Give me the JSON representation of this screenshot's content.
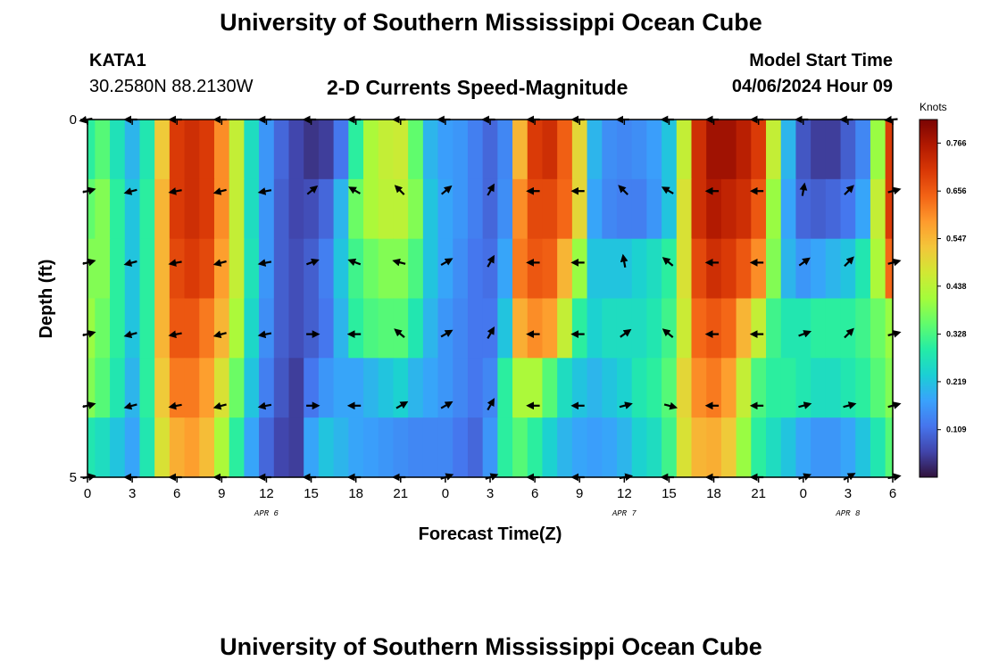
{
  "header": {
    "title": "University of Southern Mississippi Ocean Cube",
    "station": "KATA1",
    "coords": "30.2580N  88.2130W",
    "subtitle": "2-D Currents Speed-Magnitude",
    "model_label": "Model Start Time",
    "model_time": "04/06/2024 Hour 09"
  },
  "footer": {
    "title": "University of Southern Mississippi Ocean Cube"
  },
  "chart_data": {
    "type": "heatmap",
    "xlabel": "Forecast Time(Z)",
    "ylabel": "Depth (ft)",
    "x_range": [
      0,
      54
    ],
    "y_range": [
      0,
      5
    ],
    "x_ticks": [
      0,
      3,
      6,
      9,
      12,
      15,
      18,
      21,
      24,
      27,
      30,
      33,
      36,
      39,
      42,
      45,
      48,
      51,
      54
    ],
    "x_tick_labels": [
      "0",
      "3",
      "6",
      "9",
      "12",
      "15",
      "18",
      "21",
      "0",
      "3",
      "6",
      "9",
      "12",
      "15",
      "18",
      "21",
      "0",
      "3",
      "6"
    ],
    "y_tick_labels": [
      {
        "value": 0,
        "label": "0"
      },
      {
        "value": 5,
        "label": "5"
      }
    ],
    "date_labels": [
      {
        "x": 12,
        "label": "APR 6"
      },
      {
        "x": 36,
        "label": "APR 7"
      },
      {
        "x": 51,
        "label": "APR 8"
      }
    ],
    "colorbar": {
      "title": "Knots",
      "min": 0.0,
      "max": 0.82,
      "ticks": [
        0.109,
        0.219,
        0.328,
        0.438,
        0.547,
        0.656,
        0.766
      ],
      "tick_labels": [
        "0.109",
        "0.219",
        "0.328",
        "0.438",
        "0.547",
        "0.656",
        "0.766"
      ],
      "colors": [
        "#30123b",
        "#4145ab",
        "#4675ed",
        "#39a2fc",
        "#1bcfd4",
        "#24eca6",
        "#61fc6c",
        "#a4fc3b",
        "#d1e834",
        "#f3c63a",
        "#fe9b2d",
        "#f36315",
        "#d93806",
        "#b11901",
        "#7a0403"
      ]
    },
    "columns_x": [
      0,
      1,
      2,
      3,
      4,
      5,
      6,
      7,
      8,
      9,
      10,
      11,
      12,
      13,
      14,
      15,
      16,
      17,
      18,
      19,
      20,
      21,
      22,
      23,
      24,
      25,
      26,
      27,
      28,
      29,
      30,
      31,
      32,
      33,
      34,
      35,
      36,
      37,
      38,
      39,
      40,
      41,
      42,
      43,
      44,
      45,
      46,
      47,
      48,
      49,
      50,
      51,
      52,
      53,
      54
    ],
    "speed_rows": [
      [
        0.3,
        0.34,
        0.27,
        0.2,
        0.28,
        0.52,
        0.7,
        0.72,
        0.7,
        0.6,
        0.45,
        0.26,
        0.16,
        0.1,
        0.06,
        0.04,
        0.05,
        0.12,
        0.3,
        0.42,
        0.45,
        0.46,
        0.35,
        0.2,
        0.17,
        0.16,
        0.13,
        0.1,
        0.14,
        0.55,
        0.7,
        0.72,
        0.65,
        0.5,
        0.2,
        0.15,
        0.14,
        0.15,
        0.17,
        0.22,
        0.45,
        0.72,
        0.78,
        0.78,
        0.75,
        0.7,
        0.45,
        0.2,
        0.08,
        0.05,
        0.05,
        0.09,
        0.14,
        0.4,
        0.7
      ],
      [
        0.35,
        0.38,
        0.3,
        0.22,
        0.3,
        0.55,
        0.7,
        0.72,
        0.7,
        0.6,
        0.45,
        0.26,
        0.16,
        0.09,
        0.06,
        0.07,
        0.1,
        0.2,
        0.36,
        0.42,
        0.44,
        0.44,
        0.38,
        0.22,
        0.18,
        0.16,
        0.13,
        0.1,
        0.15,
        0.6,
        0.68,
        0.68,
        0.64,
        0.5,
        0.18,
        0.14,
        0.13,
        0.13,
        0.16,
        0.22,
        0.48,
        0.72,
        0.76,
        0.74,
        0.72,
        0.66,
        0.4,
        0.18,
        0.1,
        0.09,
        0.1,
        0.12,
        0.18,
        0.45,
        0.7
      ],
      [
        0.38,
        0.38,
        0.3,
        0.22,
        0.3,
        0.55,
        0.68,
        0.7,
        0.68,
        0.58,
        0.45,
        0.27,
        0.16,
        0.09,
        0.07,
        0.09,
        0.13,
        0.22,
        0.32,
        0.36,
        0.38,
        0.38,
        0.33,
        0.22,
        0.18,
        0.15,
        0.12,
        0.11,
        0.18,
        0.62,
        0.66,
        0.65,
        0.55,
        0.4,
        0.22,
        0.22,
        0.22,
        0.24,
        0.26,
        0.3,
        0.48,
        0.68,
        0.72,
        0.7,
        0.66,
        0.6,
        0.38,
        0.2,
        0.16,
        0.18,
        0.2,
        0.22,
        0.28,
        0.42,
        0.64
      ],
      [
        0.4,
        0.36,
        0.3,
        0.22,
        0.3,
        0.55,
        0.66,
        0.66,
        0.62,
        0.55,
        0.42,
        0.25,
        0.15,
        0.09,
        0.07,
        0.09,
        0.12,
        0.2,
        0.3,
        0.33,
        0.34,
        0.34,
        0.28,
        0.2,
        0.16,
        0.14,
        0.12,
        0.12,
        0.22,
        0.56,
        0.6,
        0.58,
        0.45,
        0.3,
        0.24,
        0.26,
        0.26,
        0.26,
        0.28,
        0.32,
        0.46,
        0.64,
        0.66,
        0.64,
        0.55,
        0.45,
        0.32,
        0.28,
        0.28,
        0.3,
        0.3,
        0.3,
        0.32,
        0.36,
        0.4
      ],
      [
        0.38,
        0.34,
        0.28,
        0.2,
        0.3,
        0.52,
        0.62,
        0.62,
        0.58,
        0.48,
        0.36,
        0.22,
        0.13,
        0.08,
        0.05,
        0.12,
        0.16,
        0.18,
        0.18,
        0.2,
        0.22,
        0.24,
        0.2,
        0.18,
        0.16,
        0.14,
        0.12,
        0.14,
        0.3,
        0.42,
        0.42,
        0.34,
        0.26,
        0.22,
        0.2,
        0.22,
        0.24,
        0.28,
        0.3,
        0.34,
        0.5,
        0.6,
        0.62,
        0.58,
        0.45,
        0.33,
        0.3,
        0.3,
        0.28,
        0.26,
        0.26,
        0.28,
        0.3,
        0.34,
        0.38
      ],
      [
        0.28,
        0.26,
        0.22,
        0.18,
        0.28,
        0.48,
        0.56,
        0.58,
        0.54,
        0.42,
        0.3,
        0.18,
        0.1,
        0.06,
        0.05,
        0.18,
        0.22,
        0.2,
        0.18,
        0.17,
        0.16,
        0.15,
        0.14,
        0.14,
        0.14,
        0.12,
        0.1,
        0.16,
        0.3,
        0.34,
        0.3,
        0.24,
        0.2,
        0.18,
        0.17,
        0.18,
        0.2,
        0.24,
        0.26,
        0.32,
        0.48,
        0.55,
        0.56,
        0.52,
        0.4,
        0.3,
        0.26,
        0.22,
        0.18,
        0.16,
        0.16,
        0.18,
        0.22,
        0.28,
        0.34
      ]
    ],
    "vector_depths": [
      0,
      1,
      2,
      3,
      4,
      5
    ],
    "vector_times": [
      0,
      3,
      6,
      9,
      12,
      15,
      18,
      21,
      24,
      27,
      30,
      33,
      36,
      39,
      42,
      45,
      48,
      51,
      54
    ],
    "vector_direction_deg": [
      [
        190,
        180,
        180,
        180,
        180,
        180,
        180,
        180,
        180,
        180,
        180,
        180,
        180,
        180,
        180,
        180,
        180,
        180,
        185
      ],
      [
        15,
        195,
        190,
        195,
        190,
        40,
        150,
        135,
        40,
        60,
        180,
        180,
        135,
        150,
        180,
        180,
        80,
        45,
        15
      ],
      [
        15,
        195,
        190,
        195,
        190,
        20,
        160,
        165,
        30,
        60,
        180,
        180,
        100,
        140,
        180,
        180,
        35,
        45,
        15
      ],
      [
        15,
        195,
        190,
        195,
        190,
        0,
        180,
        140,
        30,
        60,
        180,
        180,
        35,
        140,
        180,
        180,
        20,
        45,
        15
      ],
      [
        15,
        195,
        190,
        195,
        190,
        0,
        180,
        30,
        30,
        60,
        180,
        180,
        15,
        345,
        180,
        180,
        15,
        15,
        15
      ],
      [
        10,
        180,
        180,
        180,
        180,
        180,
        180,
        180,
        20,
        20,
        180,
        180,
        10,
        180,
        180,
        180,
        20,
        30,
        10
      ]
    ]
  }
}
